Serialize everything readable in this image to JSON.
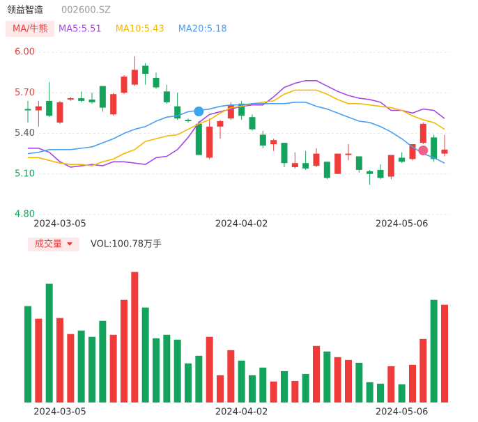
{
  "header": {
    "name": "领益智造",
    "code": "002600.SZ"
  },
  "chart_data": [
    {
      "type": "candlestick",
      "legend_button": "MA/牛熊",
      "categories": [
        null,
        null,
        null,
        "2024-03-05",
        null,
        null,
        null,
        null,
        null,
        null,
        null,
        null,
        null,
        null,
        null,
        null,
        null,
        null,
        null,
        null,
        "2024-04-02",
        null,
        null,
        null,
        null,
        null,
        null,
        null,
        null,
        null,
        null,
        null,
        null,
        null,
        null,
        "2024-05-06",
        null,
        null,
        null,
        null
      ],
      "open": [
        5.58,
        5.57,
        5.64,
        5.48,
        5.65,
        5.66,
        5.65,
        5.75,
        5.54,
        5.7,
        5.76,
        5.9,
        5.81,
        5.71,
        5.6,
        5.5,
        5.47,
        5.22,
        5.45,
        5.51,
        5.62,
        5.52,
        5.39,
        5.32,
        5.33,
        5.15,
        5.18,
        5.16,
        5.19,
        5.1,
        5.24,
        5.23,
        5.12,
        5.13,
        5.08,
        5.22,
        5.21,
        5.33,
        5.37,
        5.25
      ],
      "high": [
        5.64,
        5.64,
        5.78,
        5.64,
        5.67,
        5.71,
        5.7,
        5.75,
        5.7,
        5.83,
        5.97,
        5.92,
        5.85,
        5.76,
        5.7,
        5.51,
        5.49,
        5.51,
        5.5,
        5.63,
        5.64,
        5.54,
        5.42,
        5.36,
        5.33,
        5.26,
        5.27,
        5.29,
        5.19,
        5.25,
        5.32,
        5.23,
        5.13,
        5.17,
        5.24,
        5.26,
        5.32,
        5.48,
        5.39,
        5.39
      ],
      "low": [
        5.48,
        5.45,
        5.52,
        5.47,
        5.64,
        5.63,
        5.62,
        5.56,
        5.53,
        5.69,
        5.75,
        5.76,
        5.73,
        5.62,
        5.5,
        5.48,
        5.24,
        5.21,
        5.36,
        5.5,
        5.5,
        5.42,
        5.29,
        5.27,
        5.15,
        5.14,
        5.13,
        5.15,
        5.06,
        5.1,
        5.2,
        5.11,
        5.02,
        5.06,
        5.06,
        5.18,
        5.2,
        5.32,
        5.19,
        5.23
      ],
      "close": [
        5.57,
        5.6,
        5.53,
        5.63,
        5.66,
        5.64,
        5.63,
        5.59,
        5.69,
        5.82,
        5.87,
        5.84,
        5.74,
        5.63,
        5.51,
        5.49,
        5.24,
        5.45,
        5.49,
        5.61,
        5.53,
        5.43,
        5.31,
        5.35,
        5.18,
        5.18,
        5.14,
        5.25,
        5.07,
        5.25,
        5.25,
        5.13,
        5.1,
        5.07,
        5.24,
        5.19,
        5.32,
        5.47,
        5.21,
        5.28
      ],
      "up_color": "#f03b3b",
      "down_color": "#14a35c",
      "ylim": [
        4.8,
        6.0
      ],
      "yticks": [
        {
          "value": 6.0,
          "label": "6.00"
        },
        {
          "value": 5.7,
          "label": "5.70"
        },
        {
          "value": 5.4,
          "label": "5.40"
        },
        {
          "value": 5.1,
          "label": "5.10"
        },
        {
          "value": 4.8,
          "label": "4.80"
        }
      ],
      "ytick_colors": [
        "#f03b3b",
        "#f03b3b",
        "#555555",
        "#14a35c",
        "#14a35c"
      ],
      "grid": true,
      "series": [
        {
          "name": "MA5:5.51",
          "color": "#a347e8",
          "values": [
            5.29,
            5.29,
            5.26,
            5.19,
            5.15,
            5.16,
            5.17,
            5.16,
            5.19,
            5.19,
            5.18,
            5.17,
            5.22,
            5.23,
            5.28,
            5.37,
            5.48,
            5.54,
            5.56,
            5.58,
            5.6,
            5.61,
            5.61,
            5.67,
            5.74,
            5.77,
            5.79,
            5.79,
            5.75,
            5.71,
            5.68,
            5.66,
            5.65,
            5.63,
            5.57,
            5.57,
            5.55,
            5.58,
            5.57,
            5.51
          ]
        },
        {
          "name": "MA10:5.43",
          "color": "#f5b800",
          "values": [
            5.22,
            5.22,
            5.2,
            5.18,
            5.17,
            5.17,
            5.16,
            5.19,
            5.21,
            5.25,
            5.28,
            5.34,
            5.36,
            5.38,
            5.39,
            5.43,
            5.47,
            5.5,
            5.55,
            5.59,
            5.6,
            5.62,
            5.63,
            5.64,
            5.69,
            5.72,
            5.72,
            5.72,
            5.69,
            5.65,
            5.62,
            5.62,
            5.61,
            5.6,
            5.59,
            5.57,
            5.53,
            5.5,
            5.48,
            5.43
          ]
        },
        {
          "name": "MA20:5.18",
          "color": "#4a9ff0",
          "values": [
            5.25,
            5.26,
            5.28,
            5.28,
            5.28,
            5.29,
            5.3,
            5.33,
            5.36,
            5.4,
            5.43,
            5.45,
            5.49,
            5.52,
            5.53,
            5.56,
            5.57,
            5.58,
            5.6,
            5.61,
            5.61,
            5.62,
            5.62,
            5.62,
            5.62,
            5.63,
            5.63,
            5.6,
            5.58,
            5.55,
            5.52,
            5.49,
            5.48,
            5.45,
            5.41,
            5.36,
            5.3,
            5.25,
            5.22,
            5.18
          ]
        }
      ]
    },
    {
      "type": "bar",
      "button": "成交量",
      "label": "VOL:100.78万手",
      "categories": [
        null,
        null,
        null,
        "2024-03-05",
        null,
        null,
        null,
        null,
        null,
        null,
        null,
        null,
        null,
        null,
        null,
        null,
        null,
        null,
        null,
        null,
        "2024-04-02",
        null,
        null,
        null,
        null,
        null,
        null,
        null,
        null,
        null,
        null,
        null,
        null,
        null,
        null,
        "2024-05-06",
        null,
        null,
        null,
        null
      ],
      "values": [
        99.4,
        86.4,
        122.4,
        87.1,
        70.6,
        74.2,
        67.7,
        84.2,
        69.8,
        105.8,
        134.6,
        97.9,
        66.2,
        69.8,
        64.8,
        40.3,
        48.2,
        67.7,
        28.1,
        54,
        43.2,
        28.1,
        36,
        21.6,
        32.4,
        22.3,
        29.5,
        58.3,
        52.6,
        46.8,
        43.9,
        41,
        20.9,
        19.4,
        37.4,
        18.7,
        38.9,
        65.5,
        105.8,
        100.78
      ],
      "ylim": [
        0,
        140
      ]
    }
  ]
}
